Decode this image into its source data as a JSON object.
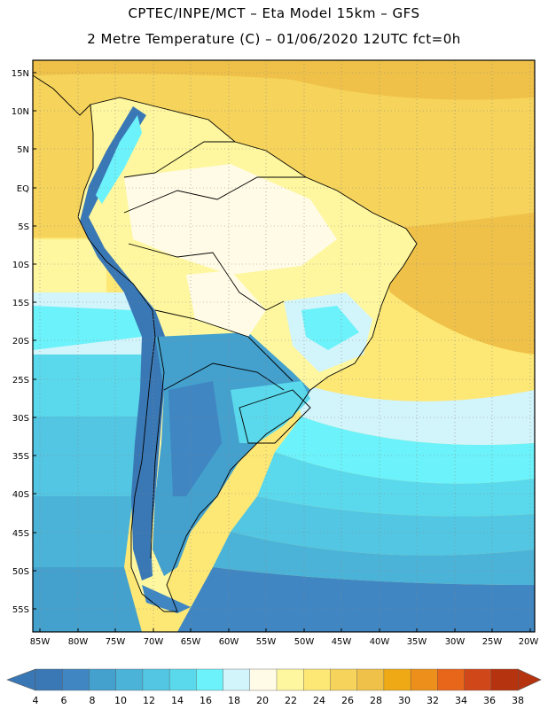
{
  "header": {
    "title_line1": "CPTEC/INPE/MCT –  Eta Model 15km – GFS",
    "title_line2": "2 Metre Temperature (C) – 01/06/2020 12UTC fct=0h"
  },
  "map": {
    "region": "South America",
    "lat_labels": [
      "15N",
      "10N",
      "5N",
      "EQ",
      "5S",
      "10S",
      "15S",
      "20S",
      "25S",
      "30S",
      "35S",
      "40S",
      "45S",
      "50S",
      "55S"
    ],
    "lon_labels": [
      "85W",
      "80W",
      "75W",
      "70W",
      "65W",
      "60W",
      "55W",
      "50W",
      "45W",
      "40W",
      "35W",
      "30W",
      "25W",
      "20W"
    ]
  },
  "colorbar": {
    "labels": [
      "4",
      "6",
      "8",
      "10",
      "12",
      "14",
      "16",
      "18",
      "20",
      "22",
      "24",
      "26",
      "28",
      "30",
      "32",
      "34",
      "36",
      "38"
    ],
    "colors": [
      "#3a78b5",
      "#3f86c2",
      "#44a0cd",
      "#4bb3d8",
      "#52c6e2",
      "#5ad9ec",
      "#6cf2fa",
      "#d2f4fb",
      "#fffbe6",
      "#fef79f",
      "#fde876",
      "#f6d35b",
      "#efc148",
      "#eea915",
      "#ec8f1b",
      "#e8661a",
      "#d0481a",
      "#b5340f"
    ]
  }
}
